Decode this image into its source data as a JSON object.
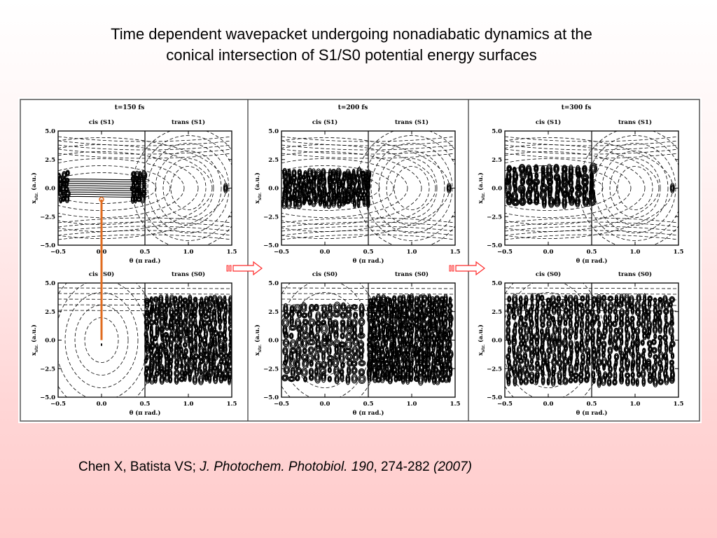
{
  "slide": {
    "title_line1": "Time dependent wavepacket undergoing nonadiabatic dynamics at the",
    "title_line2": "conical intersection of S1/S0 potential energy surfaces"
  },
  "figure": {
    "panels": [
      {
        "time_label": "t=150 fs",
        "wavepacket": "S1 cis localized, S0 trans dense"
      },
      {
        "time_label": "t=200 fs",
        "wavepacket": "S1 cis spread, S0 cis+trans dense"
      },
      {
        "time_label": "t=300 fs",
        "wavepacket": "S1 cis fragmented, S0 broadly dense"
      }
    ],
    "region_labels": {
      "top_left": "cis (S1)",
      "top_right": "trans (S1)",
      "bottom_left": "cis (S0)",
      "bottom_right": "trans (S0)"
    },
    "y_axis_label": "x",
    "y_axis_sub": "str.",
    "y_axis_unit": "(a.u.)",
    "x_axis_label": "θ (π rad.)",
    "x_ticks": [
      "−0.5",
      "0.0",
      "0.5",
      "1.0",
      "1.5"
    ],
    "y_ticks": [
      "5.0",
      "2.5",
      "0.0",
      "−2.5",
      "−5.0"
    ],
    "x_range": [
      -0.5,
      1.5
    ],
    "y_range": [
      -5.0,
      5.0
    ],
    "arrow_color": "#e06b1e",
    "transition_arrow_color": "#ff2a2a"
  },
  "citation": {
    "authors": "Chen X, Batista VS; ",
    "journal": "J. Photochem. Photobiol. 190",
    "pages": ", 274-282 ",
    "year": "(2007)"
  }
}
